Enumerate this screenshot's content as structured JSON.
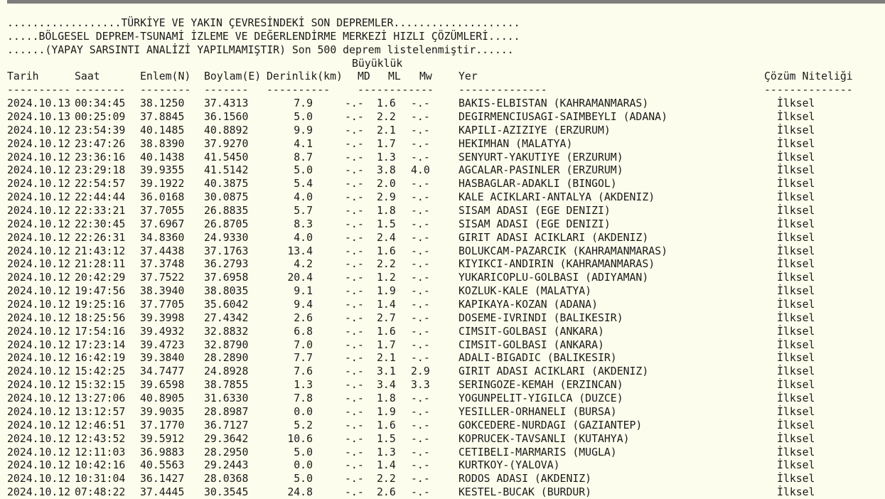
{
  "colors": {
    "background": "#fcfdec",
    "top_bar": "#7d7d7d",
    "text": "#1a1a1a"
  },
  "header": {
    "line1": "..................TÜRKİYE VE YAKIN ÇEVRESİNDEKİ SON DEPREMLER....................",
    "line2": ".....BÖLGESEL DEPREM-TSUNAMİ İZLEME VE DEĞERLENDİRME MERKEZİ HIZLI ÇÖZÜMLERİ.....",
    "line3": "......(YAPAY SARSINTI ANALİZİ YAPILMAMIŞTIR) Son 500 deprem listelenmiştir......"
  },
  "table": {
    "magnitude_group_label": "Büyüklük",
    "columns": {
      "date": "Tarih",
      "time": "Saat",
      "lat": "Enlem(N)",
      "lon": "Boylam(E)",
      "depth": "Derinlik(km)",
      "md": "MD",
      "ml": "ML",
      "mw": "Mw",
      "place": "Yer",
      "quality": "Çözüm Niteliği"
    },
    "separators": {
      "date": "----------",
      "time": "--------",
      "lat": "--------",
      "lon": "-------",
      "depth": "----------",
      "mag": "------------",
      "place": "--------------",
      "quality": "--------------"
    },
    "rows": [
      {
        "date": "2024.10.13",
        "time": "00:34:45",
        "lat": "38.1250",
        "lon": "37.4313",
        "depth": "7.9",
        "md": "-.-",
        "ml": "1.6",
        "mw": "-.-",
        "place": "BAKIS-ELBISTAN (KAHRAMANMARAS)",
        "quality": "İlksel"
      },
      {
        "date": "2024.10.13",
        "time": "00:25:09",
        "lat": "37.8845",
        "lon": "36.1560",
        "depth": "5.0",
        "md": "-.-",
        "ml": "2.2",
        "mw": "-.-",
        "place": "DEGIRMENCIUSAGI-SAIMBEYLI (ADANA)",
        "quality": "İlksel"
      },
      {
        "date": "2024.10.12",
        "time": "23:54:39",
        "lat": "40.1485",
        "lon": "40.8892",
        "depth": "9.9",
        "md": "-.-",
        "ml": "2.1",
        "mw": "-.-",
        "place": "KAPILI-AZIZIYE (ERZURUM)",
        "quality": "İlksel"
      },
      {
        "date": "2024.10.12",
        "time": "23:47:26",
        "lat": "38.8390",
        "lon": "37.9270",
        "depth": "4.1",
        "md": "-.-",
        "ml": "1.7",
        "mw": "-.-",
        "place": "HEKIMHAN (MALATYA)",
        "quality": "İlksel"
      },
      {
        "date": "2024.10.12",
        "time": "23:36:16",
        "lat": "40.1438",
        "lon": "41.5450",
        "depth": "8.7",
        "md": "-.-",
        "ml": "1.3",
        "mw": "-.-",
        "place": "SENYURT-YAKUTIYE (ERZURUM)",
        "quality": "İlksel"
      },
      {
        "date": "2024.10.12",
        "time": "23:29:18",
        "lat": "39.9355",
        "lon": "41.5142",
        "depth": "5.0",
        "md": "-.-",
        "ml": "3.8",
        "mw": "4.0",
        "place": "AGCALAR-PASINLER (ERZURUM)",
        "quality": "İlksel"
      },
      {
        "date": "2024.10.12",
        "time": "22:54:57",
        "lat": "39.1922",
        "lon": "40.3875",
        "depth": "5.4",
        "md": "-.-",
        "ml": "2.0",
        "mw": "-.-",
        "place": "HASBAGLAR-ADAKLI (BINGOL)",
        "quality": "İlksel"
      },
      {
        "date": "2024.10.12",
        "time": "22:44:44",
        "lat": "36.0168",
        "lon": "30.0875",
        "depth": "4.0",
        "md": "-.-",
        "ml": "2.9",
        "mw": "-.-",
        "place": "KALE ACIKLARI-ANTALYA (AKDENIZ)",
        "quality": "İlksel"
      },
      {
        "date": "2024.10.12",
        "time": "22:33:21",
        "lat": "37.7055",
        "lon": "26.8835",
        "depth": "5.7",
        "md": "-.-",
        "ml": "1.8",
        "mw": "-.-",
        "place": "SISAM ADASI (EGE DENIZI)",
        "quality": "İlksel"
      },
      {
        "date": "2024.10.12",
        "time": "22:30:45",
        "lat": "37.6967",
        "lon": "26.8705",
        "depth": "8.3",
        "md": "-.-",
        "ml": "1.5",
        "mw": "-.-",
        "place": "SISAM ADASI (EGE DENIZI)",
        "quality": "İlksel"
      },
      {
        "date": "2024.10.12",
        "time": "22:26:31",
        "lat": "34.8360",
        "lon": "24.9330",
        "depth": "4.0",
        "md": "-.-",
        "ml": "2.4",
        "mw": "-.-",
        "place": "GIRIT ADASI ACIKLARI (AKDENIZ)",
        "quality": "İlksel"
      },
      {
        "date": "2024.10.12",
        "time": "21:43:12",
        "lat": "37.4438",
        "lon": "37.1763",
        "depth": "13.4",
        "md": "-.-",
        "ml": "1.6",
        "mw": "-.-",
        "place": "BOLUKCAM-PAZARCIK (KAHRAMANMARAS)",
        "quality": "İlksel"
      },
      {
        "date": "2024.10.12",
        "time": "21:28:11",
        "lat": "37.3748",
        "lon": "36.2793",
        "depth": "4.2",
        "md": "-.-",
        "ml": "2.2",
        "mw": "-.-",
        "place": "KIYIKCI-ANDIRIN (KAHRAMANMARAS)",
        "quality": "İlksel"
      },
      {
        "date": "2024.10.12",
        "time": "20:42:29",
        "lat": "37.7522",
        "lon": "37.6958",
        "depth": "20.4",
        "md": "-.-",
        "ml": "1.2",
        "mw": "-.-",
        "place": "YUKARICOPLU-GOLBASI (ADIYAMAN)",
        "quality": "İlksel"
      },
      {
        "date": "2024.10.12",
        "time": "19:47:56",
        "lat": "38.3940",
        "lon": "38.8035",
        "depth": "9.1",
        "md": "-.-",
        "ml": "1.9",
        "mw": "-.-",
        "place": "KOZLUK-KALE (MALATYA)",
        "quality": "İlksel"
      },
      {
        "date": "2024.10.12",
        "time": "19:25:16",
        "lat": "37.7705",
        "lon": "35.6042",
        "depth": "9.4",
        "md": "-.-",
        "ml": "1.4",
        "mw": "-.-",
        "place": "KAPIKAYA-KOZAN (ADANA)",
        "quality": "İlksel"
      },
      {
        "date": "2024.10.12",
        "time": "18:25:56",
        "lat": "39.3998",
        "lon": "27.4342",
        "depth": "2.6",
        "md": "-.-",
        "ml": "2.7",
        "mw": "-.-",
        "place": "DOSEME-IVRINDI (BALIKESIR)",
        "quality": "İlksel"
      },
      {
        "date": "2024.10.12",
        "time": "17:54:16",
        "lat": "39.4932",
        "lon": "32.8832",
        "depth": "6.8",
        "md": "-.-",
        "ml": "1.6",
        "mw": "-.-",
        "place": "CIMSIT-GOLBASI (ANKARA)",
        "quality": "İlksel"
      },
      {
        "date": "2024.10.12",
        "time": "17:23:14",
        "lat": "39.4723",
        "lon": "32.8790",
        "depth": "7.0",
        "md": "-.-",
        "ml": "1.7",
        "mw": "-.-",
        "place": "CIMSIT-GOLBASI (ANKARA)",
        "quality": "İlksel"
      },
      {
        "date": "2024.10.12",
        "time": "16:42:19",
        "lat": "39.3840",
        "lon": "28.2890",
        "depth": "7.7",
        "md": "-.-",
        "ml": "2.1",
        "mw": "-.-",
        "place": "ADALI-BIGADIC (BALIKESIR)",
        "quality": "İlksel"
      },
      {
        "date": "2024.10.12",
        "time": "15:42:25",
        "lat": "34.7477",
        "lon": "24.8928",
        "depth": "7.6",
        "md": "-.-",
        "ml": "3.1",
        "mw": "2.9",
        "place": "GIRIT ADASI ACIKLARI (AKDENIZ)",
        "quality": "İlksel"
      },
      {
        "date": "2024.10.12",
        "time": "15:32:15",
        "lat": "39.6598",
        "lon": "38.7855",
        "depth": "1.3",
        "md": "-.-",
        "ml": "3.4",
        "mw": "3.3",
        "place": "SERINGOZE-KEMAH (ERZINCAN)",
        "quality": "İlksel"
      },
      {
        "date": "2024.10.12",
        "time": "13:27:06",
        "lat": "40.8905",
        "lon": "31.6330",
        "depth": "7.8",
        "md": "-.-",
        "ml": "1.8",
        "mw": "-.-",
        "place": "YOGUNPELIT-YIGILCA (DUZCE)",
        "quality": "İlksel"
      },
      {
        "date": "2024.10.12",
        "time": "13:12:57",
        "lat": "39.9035",
        "lon": "28.8987",
        "depth": "0.0",
        "md": "-.-",
        "ml": "1.9",
        "mw": "-.-",
        "place": "YESILLER-ORHANELI (BURSA)",
        "quality": "İlksel"
      },
      {
        "date": "2024.10.12",
        "time": "12:46:51",
        "lat": "37.1770",
        "lon": "36.7127",
        "depth": "5.2",
        "md": "-.-",
        "ml": "1.6",
        "mw": "-.-",
        "place": "GOKCEDERE-NURDAGI (GAZIANTEP)",
        "quality": "İlksel"
      },
      {
        "date": "2024.10.12",
        "time": "12:43:52",
        "lat": "39.5912",
        "lon": "29.3642",
        "depth": "10.6",
        "md": "-.-",
        "ml": "1.5",
        "mw": "-.-",
        "place": "KOPRUCEK-TAVSANLI (KUTAHYA)",
        "quality": "İlksel"
      },
      {
        "date": "2024.10.12",
        "time": "12:11:03",
        "lat": "36.9883",
        "lon": "28.2950",
        "depth": "5.0",
        "md": "-.-",
        "ml": "1.3",
        "mw": "-.-",
        "place": "CETIBELI-MARMARIS (MUGLA)",
        "quality": "İlksel"
      },
      {
        "date": "2024.10.12",
        "time": "10:42:16",
        "lat": "40.5563",
        "lon": "29.2443",
        "depth": "0.0",
        "md": "-.-",
        "ml": "1.4",
        "mw": "-.-",
        "place": "KURTKOY-(YALOVA)",
        "quality": "İlksel"
      },
      {
        "date": "2024.10.12",
        "time": "10:31:04",
        "lat": "36.1427",
        "lon": "28.0368",
        "depth": "5.0",
        "md": "-.-",
        "ml": "2.2",
        "mw": "-.-",
        "place": "RODOS ADASI (AKDENIZ)",
        "quality": "İlksel"
      },
      {
        "date": "2024.10.12",
        "time": "07:48:22",
        "lat": "37.4445",
        "lon": "30.3545",
        "depth": "24.8",
        "md": "-.-",
        "ml": "2.6",
        "mw": "-.-",
        "place": "KESTEL-BUCAK (BURDUR)",
        "quality": "İlksel"
      }
    ]
  }
}
